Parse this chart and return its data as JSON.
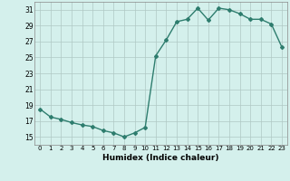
{
  "x": [
    0,
    1,
    2,
    3,
    4,
    5,
    6,
    7,
    8,
    9,
    10,
    11,
    12,
    13,
    14,
    15,
    16,
    17,
    18,
    19,
    20,
    21,
    22,
    23
  ],
  "y": [
    18.5,
    17.5,
    17.2,
    16.8,
    16.5,
    16.3,
    15.8,
    15.5,
    15.0,
    15.5,
    16.2,
    25.2,
    27.2,
    29.5,
    29.8,
    31.2,
    29.7,
    31.2,
    31.0,
    30.5,
    29.8,
    29.8,
    29.2,
    26.3
  ],
  "xlabel": "Humidex (Indice chaleur)",
  "ylim": [
    14,
    32
  ],
  "xlim": [
    -0.5,
    23.5
  ],
  "yticks": [
    15,
    17,
    19,
    21,
    23,
    25,
    27,
    29,
    31
  ],
  "xticks": [
    0,
    1,
    2,
    3,
    4,
    5,
    6,
    7,
    8,
    9,
    10,
    11,
    12,
    13,
    14,
    15,
    16,
    17,
    18,
    19,
    20,
    21,
    22,
    23
  ],
  "line_color": "#2e7d6e",
  "marker": "D",
  "marker_size": 2.0,
  "bg_color": "#d4f0ec",
  "grid_color": "#b0c8c4",
  "line_width": 1.0,
  "xtick_fontsize": 5.0,
  "ytick_fontsize": 5.5,
  "xlabel_fontsize": 6.5
}
